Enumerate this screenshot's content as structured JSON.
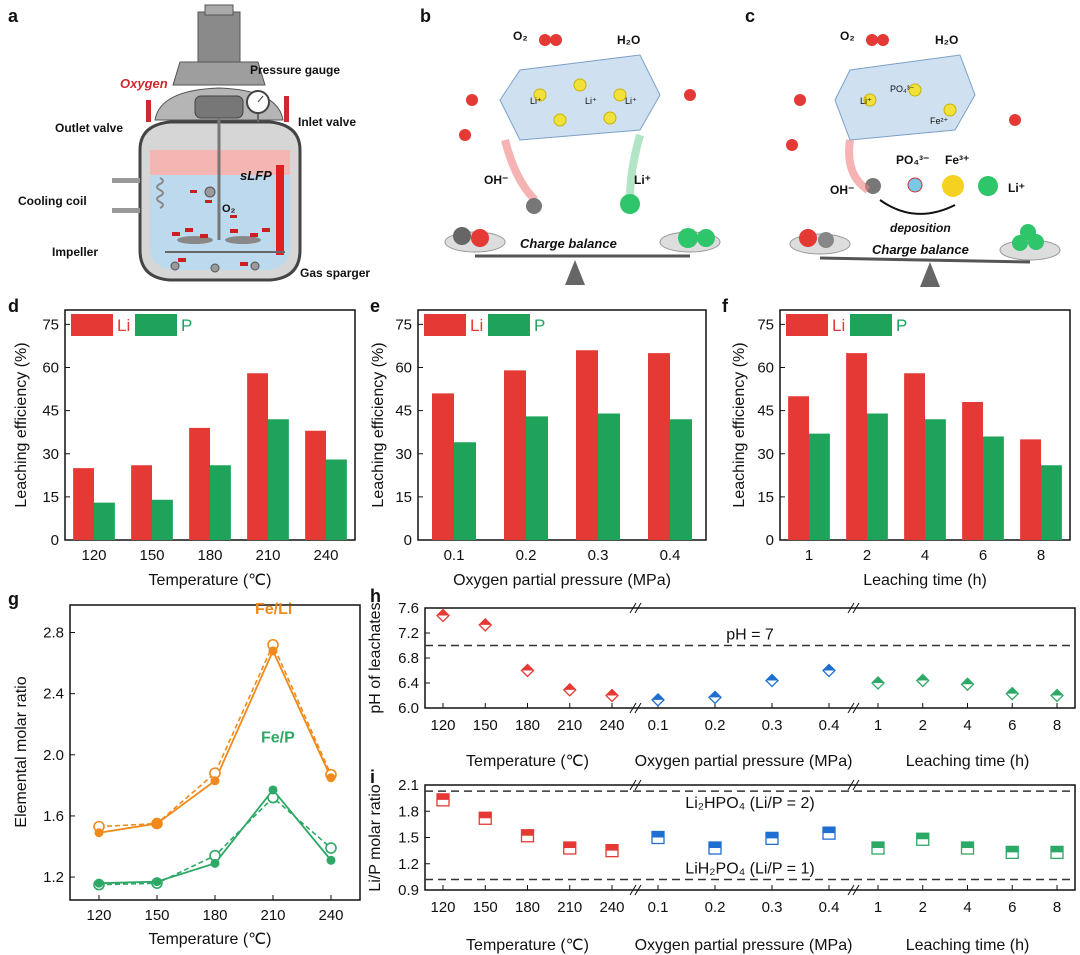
{
  "panel_labels": {
    "a": "a",
    "b": "b",
    "c": "c",
    "d": "d",
    "e": "e",
    "f": "f",
    "g": "g",
    "h": "h",
    "i": "i"
  },
  "schematic_a": {
    "oxygen": "Oxygen",
    "outlet_valve": "Outlet valve",
    "pressure_gauge": "Pressure gauge",
    "inlet_valve": "Inlet valve",
    "cooling_coil": "Cooling coil",
    "slfp": "sLFP",
    "o2": "O₂",
    "impeller": "Impeller",
    "gas_sparger": "Gas sparger"
  },
  "schematic_b": {
    "o2": "O₂",
    "h2o": "H₂O",
    "li_site": "Li⁺",
    "oh": "OH⁻",
    "li_ion": "Li⁺",
    "charge_balance": "Charge balance"
  },
  "schematic_c": {
    "o2": "O₂",
    "h2o": "H₂O",
    "po4_small": "PO₄³⁻",
    "fe2": "Fe²⁺",
    "li_site": "Li⁺",
    "po4": "PO₄³⁻",
    "fe3": "Fe³⁺",
    "oh": "OH⁻",
    "li_ion": "Li⁺",
    "deposition": "deposition",
    "charge_balance": "Charge balance"
  },
  "colors": {
    "li": "#e53935",
    "p": "#1fa35b",
    "orange": "#f08a1c",
    "green_line": "#2ea866",
    "red_marker": "#e53935",
    "blue_marker": "#1e6fd0",
    "green_marker": "#2ea866"
  },
  "chart_data": [
    {
      "id": "d",
      "type": "bar",
      "categories": [
        "120",
        "150",
        "180",
        "210",
        "240"
      ],
      "series": [
        {
          "name": "Li",
          "values": [
            25,
            26,
            39,
            58,
            38
          ]
        },
        {
          "name": "P",
          "values": [
            13,
            14,
            26,
            42,
            28
          ]
        }
      ],
      "xlabel": "Temperature (℃)",
      "ylabel": "Leaching efficiency (%)",
      "ylim": [
        0,
        80
      ],
      "yticks": [
        "0",
        "15",
        "30",
        "45",
        "60",
        "75"
      ],
      "legend": "top-left"
    },
    {
      "id": "e",
      "type": "bar",
      "categories": [
        "0.1",
        "0.2",
        "0.3",
        "0.4"
      ],
      "series": [
        {
          "name": "Li",
          "values": [
            51,
            59,
            66,
            65
          ]
        },
        {
          "name": "P",
          "values": [
            34,
            43,
            44,
            42
          ]
        }
      ],
      "xlabel": "Oxygen partial pressure (MPa)",
      "ylabel": "Leaching efficiency (%)",
      "ylim": [
        0,
        80
      ],
      "yticks": [
        "0",
        "15",
        "30",
        "45",
        "60",
        "75"
      ],
      "legend": "top-left"
    },
    {
      "id": "f",
      "type": "bar",
      "categories": [
        "1",
        "2",
        "4",
        "6",
        "8"
      ],
      "series": [
        {
          "name": "Li",
          "values": [
            50,
            65,
            58,
            48,
            35
          ]
        },
        {
          "name": "P",
          "values": [
            37,
            44,
            42,
            36,
            26
          ]
        }
      ],
      "xlabel": "Leaching time (h)",
      "ylabel": "Leaching efficiency (%)",
      "ylim": [
        0,
        80
      ],
      "yticks": [
        "0",
        "15",
        "30",
        "45",
        "60",
        "75"
      ],
      "legend": "top-left"
    },
    {
      "id": "g",
      "type": "line",
      "categories": [
        "120",
        "150",
        "180",
        "210",
        "240"
      ],
      "series": [
        {
          "name": "Fe/Li",
          "solid": [
            1.49,
            1.55,
            1.83,
            2.68,
            1.85
          ],
          "dashed": [
            1.53,
            1.55,
            1.88,
            2.72,
            1.87
          ]
        },
        {
          "name": "Fe/P",
          "solid": [
            1.16,
            1.17,
            1.29,
            1.77,
            1.31
          ],
          "dashed": [
            1.15,
            1.16,
            1.34,
            1.72,
            1.39
          ]
        }
      ],
      "xlabel": "Temperature (℃)",
      "ylabel": "Elemental molar ratio",
      "ylim": [
        1.05,
        2.98
      ],
      "yticks": [
        "1.2",
        "1.6",
        "2.0",
        "2.4",
        "2.8"
      ]
    },
    {
      "id": "h",
      "type": "scatter",
      "groups": [
        {
          "label": "Temperature (℃)",
          "categories": [
            "120",
            "150",
            "180",
            "210",
            "240"
          ],
          "values": [
            7.48,
            7.33,
            6.6,
            6.29,
            6.2
          ]
        },
        {
          "label": "Oxygen partial pressure (MPa)",
          "categories": [
            "0.1",
            "0.2",
            "0.3",
            "0.4"
          ],
          "values": [
            6.13,
            6.17,
            6.44,
            6.6
          ]
        },
        {
          "label": "Leaching time (h)",
          "categories": [
            "1",
            "2",
            "4",
            "6",
            "8"
          ],
          "values": [
            6.4,
            6.44,
            6.38,
            6.23,
            6.2
          ]
        }
      ],
      "reference": {
        "value": 7.0,
        "label": "pH = 7"
      },
      "ylabel": "pH of leachates",
      "ylim": [
        6.0,
        7.6
      ],
      "yticks": [
        "6.0",
        "6.4",
        "6.8",
        "7.2",
        "7.6"
      ]
    },
    {
      "id": "i",
      "type": "scatter",
      "groups": [
        {
          "label": "Temperature (℃)",
          "categories": [
            "120",
            "150",
            "180",
            "210",
            "240"
          ],
          "values": [
            1.93,
            1.72,
            1.52,
            1.38,
            1.35
          ]
        },
        {
          "label": "Oxygen partial pressure (MPa)",
          "categories": [
            "0.1",
            "0.2",
            "0.3",
            "0.4"
          ],
          "values": [
            1.5,
            1.38,
            1.49,
            1.55
          ]
        },
        {
          "label": "Leaching time (h)",
          "categories": [
            "1",
            "2",
            "4",
            "6",
            "8"
          ],
          "values": [
            1.38,
            1.48,
            1.38,
            1.33,
            1.33
          ]
        }
      ],
      "references": [
        {
          "value": 2.03,
          "label": "Li₂HPO₄ (Li/P = 2)"
        },
        {
          "value": 1.02,
          "label": "LiH₂PO₄ (Li/P = 1)"
        }
      ],
      "ylabel": "Li/P molar ratio",
      "ylim": [
        0.9,
        2.1
      ],
      "yticks": [
        "0.9",
        "1.2",
        "1.5",
        "1.8",
        "2.1"
      ]
    }
  ]
}
